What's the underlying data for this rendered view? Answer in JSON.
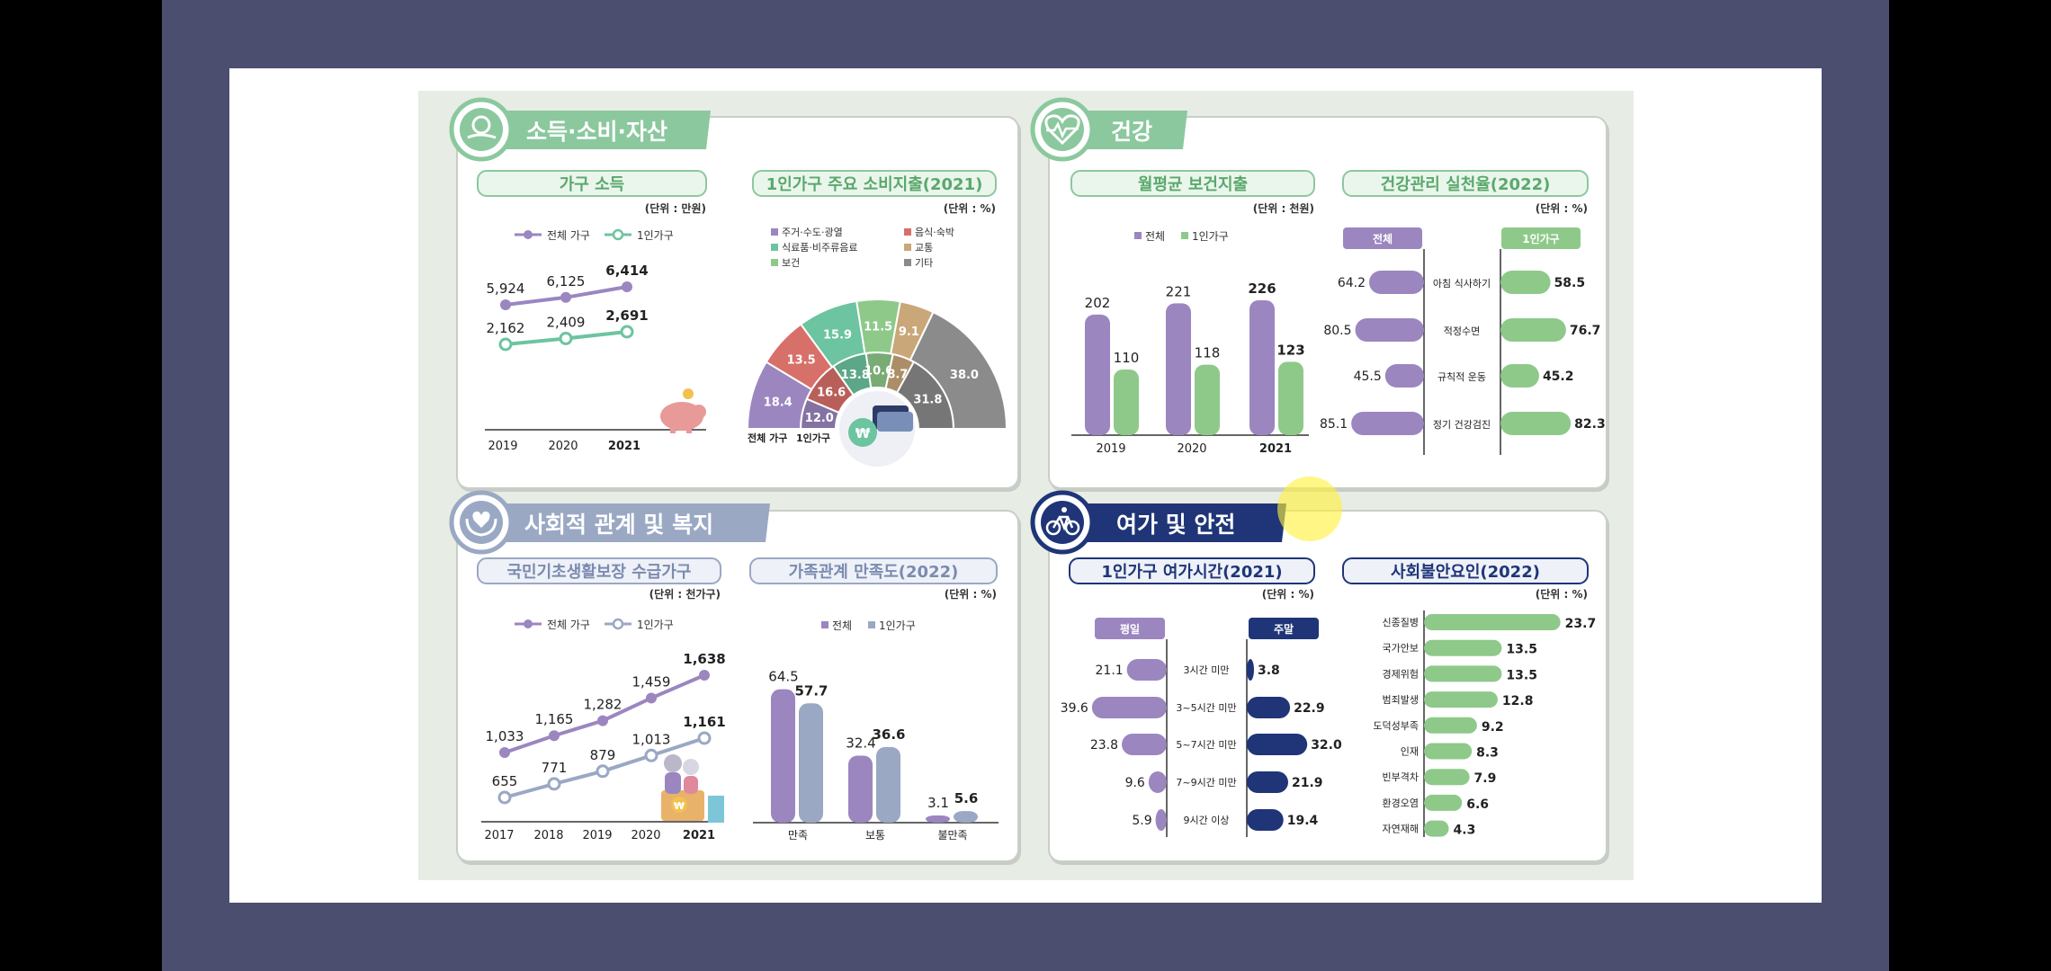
{
  "colors": {
    "overall": "#9b86c0",
    "single": "#8ec98a",
    "green_title": "#8bc89e",
    "slate_title": "#9aa8c4",
    "navy_title": "#1f3578",
    "sheet_bg": "#e7ece4",
    "frame_bg": "#4b4e6e"
  },
  "sections": {
    "income": {
      "title": "소득·소비·자산",
      "household_income": {
        "title": "가구 소득",
        "unit": "(단위 : 만원)",
        "legend_total": "전체 가구",
        "legend_single": "1인가구"
      },
      "spending": {
        "title": "1인가구 주요 소비지출(2021)",
        "unit": "(단위 : %)",
        "legend": [
          {
            "label": "주거·수도·광열",
            "color": "#9b86c0"
          },
          {
            "label": "음식·숙박",
            "color": "#d8706a"
          },
          {
            "label": "식료품·비주류음료",
            "color": "#6cc4a0"
          },
          {
            "label": "교통",
            "color": "#c9a779"
          },
          {
            "label": "보건",
            "color": "#8ec98a"
          },
          {
            "label": "기타",
            "color": "#8b8b8b"
          }
        ],
        "inner_label": "전체 가구",
        "outer_label": "1인가구"
      }
    },
    "health": {
      "title": "건강",
      "spending": {
        "title": "월평균 보건지출",
        "unit": "(단위 : 천원)",
        "legend_total": "전체",
        "legend_single": "1인가구"
      },
      "practice": {
        "title": "건강관리 실천율(2022)",
        "unit": "(단위 : %)",
        "left_head": "전체",
        "right_head": "1인가구"
      }
    },
    "welfare": {
      "title": "사회적 관계 및 복지",
      "basic": {
        "title": "국민기초생활보장 수급가구",
        "unit": "(단위 : 천가구)",
        "legend_total": "전체 가구",
        "legend_single": "1인가구"
      },
      "family": {
        "title": "가족관계 만족도(2022)",
        "unit": "(단위 : %)",
        "legend_total": "전체",
        "legend_single": "1인가구"
      }
    },
    "leisure": {
      "title": "여가 및 안전",
      "time": {
        "title": "1인가구 여가시간(2021)",
        "unit": "(단위 : %)",
        "left_head": "평일",
        "right_head": "주말"
      },
      "anxiety": {
        "title": "사회불안요인(2022)",
        "unit": "(단위 : %)"
      }
    }
  },
  "chart_data": [
    {
      "type": "line",
      "id": "household_income",
      "title": "가구 소득",
      "x": [
        "2019",
        "2020",
        "2021"
      ],
      "series": [
        {
          "name": "전체 가구",
          "values": [
            5924,
            6125,
            6414
          ]
        },
        {
          "name": "1인가구",
          "values": [
            2162,
            2409,
            2691
          ]
        }
      ],
      "value_labels": {
        "전체 가구": [
          "5,924",
          "6,125",
          "6,414"
        ],
        "1인가구": [
          "2,162",
          "2,409",
          "2,691"
        ]
      },
      "legend": "top-left"
    },
    {
      "type": "pie",
      "id": "single_spending",
      "title": "1인가구 주요 소비지출(2021)",
      "categories": [
        "주거·수도·광열",
        "음식·숙박",
        "식료품·비주류음료",
        "보건",
        "교통",
        "기타"
      ],
      "series": [
        {
          "name": "전체 가구",
          "values": [
            12.0,
            16.6,
            13.8,
            10.6,
            8.7,
            31.8
          ]
        },
        {
          "name": "1인가구",
          "values": [
            18.4,
            13.5,
            15.9,
            11.5,
            9.1,
            38.0
          ]
        }
      ]
    },
    {
      "type": "bar",
      "id": "health_spending",
      "title": "월평균 보건지출",
      "categories": [
        "2019",
        "2020",
        "2021"
      ],
      "series": [
        {
          "name": "전체",
          "values": [
            202,
            221,
            226
          ]
        },
        {
          "name": "1인가구",
          "values": [
            110,
            118,
            123
          ]
        }
      ]
    },
    {
      "type": "bar",
      "id": "health_practice",
      "title": "건강관리 실천율(2022)",
      "categories": [
        "아침 식사하기",
        "적정수면",
        "규칙적 운동",
        "정기 건강검진"
      ],
      "series": [
        {
          "name": "전체",
          "values": [
            64.2,
            80.5,
            45.5,
            85.1
          ]
        },
        {
          "name": "1인가구",
          "values": [
            58.5,
            76.7,
            45.2,
            82.3
          ]
        }
      ]
    },
    {
      "type": "line",
      "id": "basic_livelihood",
      "title": "국민기초생활보장 수급가구",
      "x": [
        "2017",
        "2018",
        "2019",
        "2020",
        "2021"
      ],
      "series": [
        {
          "name": "전체 가구",
          "values": [
            1033,
            1165,
            1282,
            1459,
            1638
          ]
        },
        {
          "name": "1인가구",
          "values": [
            655,
            771,
            879,
            1013,
            1161
          ]
        }
      ],
      "value_labels": {
        "전체 가구": [
          "1,033",
          "1,165",
          "1,282",
          "1,459",
          "1,638"
        ],
        "1인가구": [
          "655",
          "771",
          "879",
          "1,013",
          "1,161"
        ]
      },
      "legend": "top-left"
    },
    {
      "type": "bar",
      "id": "family_satisfaction",
      "title": "가족관계 만족도(2022)",
      "categories": [
        "만족",
        "보통",
        "불만족"
      ],
      "series": [
        {
          "name": "전체",
          "values": [
            64.5,
            32.4,
            3.1
          ]
        },
        {
          "name": "1인가구",
          "values": [
            57.7,
            36.6,
            5.6
          ]
        }
      ]
    },
    {
      "type": "bar",
      "id": "leisure_time",
      "title": "1인가구 여가시간(2021)",
      "categories": [
        "3시간 미만",
        "3~5시간 미만",
        "5~7시간 미만",
        "7~9시간 미만",
        "9시간 이상"
      ],
      "series": [
        {
          "name": "평일",
          "values": [
            21.1,
            39.6,
            23.8,
            9.6,
            5.9
          ]
        },
        {
          "name": "주말",
          "values": [
            3.8,
            22.9,
            32.0,
            21.9,
            19.4
          ]
        }
      ]
    },
    {
      "type": "bar",
      "id": "social_anxiety",
      "title": "사회불안요인(2022)",
      "categories": [
        "신종질병",
        "국가안보",
        "경제위험",
        "범죄발생",
        "도덕성부족",
        "인재",
        "빈부격차",
        "환경오염",
        "자연재해"
      ],
      "values": [
        23.7,
        13.5,
        13.5,
        12.8,
        9.2,
        8.3,
        7.9,
        6.6,
        4.3
      ]
    }
  ]
}
